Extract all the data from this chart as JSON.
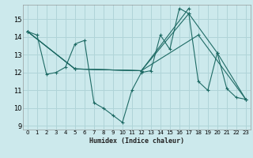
{
  "xlabel": "Humidex (Indice chaleur)",
  "xlim": [
    -0.5,
    23.5
  ],
  "ylim": [
    8.8,
    15.8
  ],
  "xticks": [
    0,
    1,
    2,
    3,
    4,
    5,
    6,
    7,
    8,
    9,
    10,
    11,
    12,
    13,
    14,
    15,
    16,
    17,
    18,
    19,
    20,
    21,
    22,
    23
  ],
  "yticks": [
    9,
    10,
    11,
    12,
    13,
    14,
    15
  ],
  "bg_color": "#cce9ec",
  "grid_color": "#b0d4d8",
  "line_color": "#1e6b65",
  "lines": [
    {
      "x": [
        0,
        1,
        2,
        3,
        4,
        5,
        6,
        7,
        8,
        9,
        10,
        11,
        12,
        13,
        14,
        15,
        16,
        17,
        18,
        19,
        20,
        21,
        22,
        23
      ],
      "y": [
        14.3,
        14.1,
        11.9,
        12.0,
        12.3,
        13.6,
        13.8,
        10.3,
        10.0,
        9.6,
        9.2,
        11.0,
        12.0,
        12.1,
        14.1,
        13.3,
        15.6,
        15.3,
        11.5,
        11.0,
        13.1,
        11.1,
        10.6,
        10.5
      ]
    },
    {
      "x": [
        0,
        5,
        12,
        17
      ],
      "y": [
        14.3,
        12.2,
        12.1,
        15.6
      ]
    },
    {
      "x": [
        0,
        5,
        12,
        17,
        20,
        23
      ],
      "y": [
        14.3,
        12.2,
        12.1,
        15.3,
        13.1,
        10.5
      ]
    },
    {
      "x": [
        0,
        5,
        12,
        18,
        23
      ],
      "y": [
        14.3,
        12.2,
        12.1,
        14.1,
        10.5
      ]
    }
  ]
}
